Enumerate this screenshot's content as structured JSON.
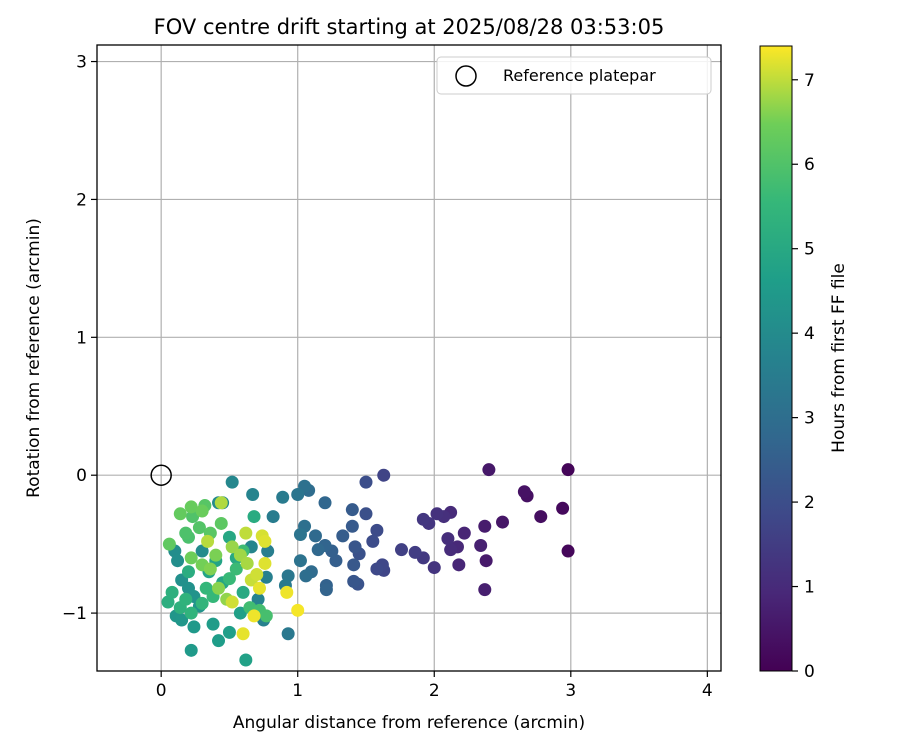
{
  "chart_data": {
    "type": "scatter",
    "title": "FOV centre drift starting at 2025/08/28 03:53:05",
    "xlabel": "Angular distance from reference (arcmin)",
    "ylabel": "Rotation from reference (arcmin)",
    "xlim": [
      -0.47,
      4.1
    ],
    "ylim": [
      -1.42,
      3.12
    ],
    "xticks": [
      0,
      1,
      2,
      3,
      4
    ],
    "yticks": [
      -1,
      0,
      1,
      2,
      3
    ],
    "grid": true,
    "legend": {
      "placement": "top-right",
      "entries": [
        {
          "label": "Reference platepar",
          "marker": "open-circle"
        }
      ]
    },
    "reference_point": {
      "x": 0,
      "y": 0,
      "label": "Reference platepar"
    },
    "colorbar": {
      "label": "Hours from first FF file",
      "range": [
        0,
        7.4
      ],
      "ticks": [
        0,
        1,
        2,
        3,
        4,
        5,
        6,
        7
      ],
      "colormap": "viridis"
    },
    "points": [
      {
        "x": 2.98,
        "y": 0.04,
        "c": 0.1
      },
      {
        "x": 2.98,
        "y": -0.55,
        "c": 0.15
      },
      {
        "x": 2.94,
        "y": -0.24,
        "c": 0.2
      },
      {
        "x": 2.78,
        "y": -0.3,
        "c": 0.3
      },
      {
        "x": 2.68,
        "y": -0.15,
        "c": 0.35
      },
      {
        "x": 2.66,
        "y": -0.12,
        "c": 0.4
      },
      {
        "x": 2.5,
        "y": -0.34,
        "c": 0.5
      },
      {
        "x": 2.4,
        "y": 0.04,
        "c": 0.55
      },
      {
        "x": 2.38,
        "y": -0.62,
        "c": 0.6
      },
      {
        "x": 2.37,
        "y": -0.37,
        "c": 0.65
      },
      {
        "x": 2.37,
        "y": -0.83,
        "c": 0.7
      },
      {
        "x": 2.34,
        "y": -0.51,
        "c": 0.75
      },
      {
        "x": 2.22,
        "y": -0.42,
        "c": 0.85
      },
      {
        "x": 2.18,
        "y": -0.65,
        "c": 0.9
      },
      {
        "x": 2.17,
        "y": -0.52,
        "c": 0.95
      },
      {
        "x": 2.12,
        "y": -0.27,
        "c": 1.0
      },
      {
        "x": 2.12,
        "y": -0.54,
        "c": 1.05
      },
      {
        "x": 2.1,
        "y": -0.46,
        "c": 1.1
      },
      {
        "x": 2.07,
        "y": -0.3,
        "c": 1.15
      },
      {
        "x": 2.02,
        "y": -0.28,
        "c": 1.2
      },
      {
        "x": 2.0,
        "y": -0.67,
        "c": 1.25
      },
      {
        "x": 1.96,
        "y": -0.35,
        "c": 1.3
      },
      {
        "x": 1.92,
        "y": -0.32,
        "c": 1.35
      },
      {
        "x": 1.92,
        "y": -0.6,
        "c": 1.4
      },
      {
        "x": 1.86,
        "y": -0.56,
        "c": 1.5
      },
      {
        "x": 1.76,
        "y": -0.54,
        "c": 1.6
      },
      {
        "x": 1.63,
        "y": 0.0,
        "c": 1.7
      },
      {
        "x": 1.63,
        "y": -0.69,
        "c": 1.75
      },
      {
        "x": 1.62,
        "y": -0.65,
        "c": 1.8
      },
      {
        "x": 1.58,
        "y": -0.68,
        "c": 1.85
      },
      {
        "x": 1.58,
        "y": -0.4,
        "c": 1.9
      },
      {
        "x": 1.55,
        "y": -0.48,
        "c": 1.95
      },
      {
        "x": 1.5,
        "y": -0.05,
        "c": 2.0
      },
      {
        "x": 1.5,
        "y": -0.28,
        "c": 2.05
      },
      {
        "x": 1.45,
        "y": -0.57,
        "c": 2.1
      },
      {
        "x": 1.44,
        "y": -0.79,
        "c": 2.15
      },
      {
        "x": 1.42,
        "y": -0.52,
        "c": 2.2
      },
      {
        "x": 1.41,
        "y": -0.77,
        "c": 2.25
      },
      {
        "x": 1.41,
        "y": -0.65,
        "c": 2.3
      },
      {
        "x": 1.4,
        "y": -0.37,
        "c": 2.35
      },
      {
        "x": 1.4,
        "y": -0.25,
        "c": 2.4
      },
      {
        "x": 1.33,
        "y": -0.44,
        "c": 2.45
      },
      {
        "x": 1.28,
        "y": -0.62,
        "c": 2.5
      },
      {
        "x": 1.25,
        "y": -0.55,
        "c": 2.55
      },
      {
        "x": 1.21,
        "y": -0.8,
        "c": 2.6
      },
      {
        "x": 1.21,
        "y": -0.83,
        "c": 2.65
      },
      {
        "x": 1.2,
        "y": -0.51,
        "c": 2.7
      },
      {
        "x": 1.2,
        "y": -0.2,
        "c": 2.75
      },
      {
        "x": 1.15,
        "y": -0.54,
        "c": 2.8
      },
      {
        "x": 1.13,
        "y": -0.44,
        "c": 2.85
      },
      {
        "x": 1.1,
        "y": -0.7,
        "c": 2.9
      },
      {
        "x": 1.08,
        "y": -0.11,
        "c": 2.95
      },
      {
        "x": 1.06,
        "y": -0.73,
        "c": 3.0
      },
      {
        "x": 1.05,
        "y": -0.37,
        "c": 3.05
      },
      {
        "x": 1.05,
        "y": -0.08,
        "c": 3.1
      },
      {
        "x": 1.02,
        "y": -0.62,
        "c": 3.15
      },
      {
        "x": 1.02,
        "y": -0.43,
        "c": 3.2
      },
      {
        "x": 1.0,
        "y": -0.14,
        "c": 3.25
      },
      {
        "x": 0.93,
        "y": -0.73,
        "c": 3.3
      },
      {
        "x": 0.93,
        "y": -1.15,
        "c": 3.35
      },
      {
        "x": 0.91,
        "y": -0.8,
        "c": 3.4
      },
      {
        "x": 0.89,
        "y": -0.16,
        "c": 3.45
      },
      {
        "x": 0.82,
        "y": -0.3,
        "c": 3.5
      },
      {
        "x": 0.78,
        "y": -0.55,
        "c": 3.55
      },
      {
        "x": 0.77,
        "y": -0.74,
        "c": 3.6
      },
      {
        "x": 0.75,
        "y": -1.05,
        "c": 3.65
      },
      {
        "x": 0.71,
        "y": -0.9,
        "c": 3.7
      },
      {
        "x": 0.67,
        "y": -0.14,
        "c": 3.75
      },
      {
        "x": 0.66,
        "y": -0.52,
        "c": 3.8
      },
      {
        "x": 0.52,
        "y": -0.05,
        "c": 3.85
      },
      {
        "x": 0.45,
        "y": -0.2,
        "c": 3.9
      },
      {
        "x": 0.42,
        "y": -0.2,
        "c": 3.95
      },
      {
        "x": 0.3,
        "y": -0.55,
        "c": 4.0
      },
      {
        "x": 0.1,
        "y": -0.55,
        "c": 4.05
      },
      {
        "x": 0.12,
        "y": -0.62,
        "c": 4.1
      },
      {
        "x": 0.15,
        "y": -0.76,
        "c": 4.15
      },
      {
        "x": 0.2,
        "y": -0.82,
        "c": 4.2
      },
      {
        "x": 0.24,
        "y": -0.88,
        "c": 4.25
      },
      {
        "x": 0.28,
        "y": -0.95,
        "c": 4.3
      },
      {
        "x": 0.11,
        "y": -1.02,
        "c": 4.35
      },
      {
        "x": 0.15,
        "y": -1.05,
        "c": 4.4
      },
      {
        "x": 0.24,
        "y": -1.1,
        "c": 4.45
      },
      {
        "x": 0.22,
        "y": -1.27,
        "c": 4.5
      },
      {
        "x": 0.38,
        "y": -1.08,
        "c": 4.55
      },
      {
        "x": 0.42,
        "y": -1.2,
        "c": 4.6
      },
      {
        "x": 0.5,
        "y": -1.14,
        "c": 4.65
      },
      {
        "x": 0.58,
        "y": -1.0,
        "c": 4.7
      },
      {
        "x": 0.62,
        "y": -1.34,
        "c": 4.75
      },
      {
        "x": 0.35,
        "y": -0.7,
        "c": 4.8
      },
      {
        "x": 0.4,
        "y": -0.62,
        "c": 4.85
      },
      {
        "x": 0.45,
        "y": -0.78,
        "c": 4.9
      },
      {
        "x": 0.5,
        "y": -0.45,
        "c": 4.95
      },
      {
        "x": 0.55,
        "y": -0.6,
        "c": 5.0
      },
      {
        "x": 0.6,
        "y": -0.85,
        "c": 5.05
      },
      {
        "x": 0.68,
        "y": -0.3,
        "c": 5.1
      },
      {
        "x": 0.2,
        "y": -0.7,
        "c": 5.15
      },
      {
        "x": 0.05,
        "y": -0.92,
        "c": 5.2
      },
      {
        "x": 0.08,
        "y": -0.85,
        "c": 5.25
      },
      {
        "x": 0.14,
        "y": -0.96,
        "c": 5.3
      },
      {
        "x": 0.18,
        "y": -0.9,
        "c": 5.35
      },
      {
        "x": 0.22,
        "y": -1.0,
        "c": 5.4
      },
      {
        "x": 0.3,
        "y": -0.93,
        "c": 5.45
      },
      {
        "x": 0.33,
        "y": -0.82,
        "c": 5.5
      },
      {
        "x": 0.38,
        "y": -0.88,
        "c": 5.55
      },
      {
        "x": 0.5,
        "y": -0.75,
        "c": 5.6
      },
      {
        "x": 0.55,
        "y": -0.68,
        "c": 5.65
      },
      {
        "x": 0.6,
        "y": -0.55,
        "c": 5.7
      },
      {
        "x": 0.65,
        "y": -0.96,
        "c": 5.75
      },
      {
        "x": 0.72,
        "y": -0.98,
        "c": 5.8
      },
      {
        "x": 0.77,
        "y": -1.02,
        "c": 5.85
      },
      {
        "x": 0.2,
        "y": -0.45,
        "c": 5.9
      },
      {
        "x": 0.18,
        "y": -0.42,
        "c": 5.95
      },
      {
        "x": 0.23,
        "y": -0.3,
        "c": 6.0
      },
      {
        "x": 0.28,
        "y": -0.38,
        "c": 6.05
      },
      {
        "x": 0.32,
        "y": -0.22,
        "c": 6.1
      },
      {
        "x": 0.36,
        "y": -0.42,
        "c": 6.15
      },
      {
        "x": 0.44,
        "y": -0.35,
        "c": 6.2
      },
      {
        "x": 0.06,
        "y": -0.5,
        "c": 6.25
      },
      {
        "x": 0.14,
        "y": -0.28,
        "c": 6.3
      },
      {
        "x": 0.22,
        "y": -0.23,
        "c": 6.35
      },
      {
        "x": 0.3,
        "y": -0.26,
        "c": 6.4
      },
      {
        "x": 0.22,
        "y": -0.6,
        "c": 6.45
      },
      {
        "x": 0.3,
        "y": -0.65,
        "c": 6.5
      },
      {
        "x": 0.4,
        "y": -0.58,
        "c": 6.55
      },
      {
        "x": 0.36,
        "y": -0.68,
        "c": 6.6
      },
      {
        "x": 0.42,
        "y": -0.82,
        "c": 6.65
      },
      {
        "x": 0.48,
        "y": -0.9,
        "c": 6.7
      },
      {
        "x": 0.52,
        "y": -0.52,
        "c": 6.75
      },
      {
        "x": 0.58,
        "y": -0.58,
        "c": 6.8
      },
      {
        "x": 0.63,
        "y": -0.64,
        "c": 6.85
      },
      {
        "x": 0.44,
        "y": -0.2,
        "c": 6.9
      },
      {
        "x": 0.34,
        "y": -0.48,
        "c": 6.95
      },
      {
        "x": 0.62,
        "y": -0.42,
        "c": 7.0
      },
      {
        "x": 0.66,
        "y": -0.76,
        "c": 7.05
      },
      {
        "x": 0.7,
        "y": -0.72,
        "c": 7.1
      },
      {
        "x": 0.74,
        "y": -0.44,
        "c": 7.15
      },
      {
        "x": 0.76,
        "y": -0.48,
        "c": 7.2
      },
      {
        "x": 0.72,
        "y": -0.82,
        "c": 7.25
      },
      {
        "x": 0.92,
        "y": -0.85,
        "c": 7.3
      },
      {
        "x": 1.0,
        "y": -0.98,
        "c": 7.35
      },
      {
        "x": 0.52,
        "y": -0.92,
        "c": 7.1
      },
      {
        "x": 0.6,
        "y": -1.15,
        "c": 7.25
      },
      {
        "x": 0.68,
        "y": -1.02,
        "c": 7.3
      },
      {
        "x": 0.76,
        "y": -0.64,
        "c": 7.2
      }
    ]
  }
}
